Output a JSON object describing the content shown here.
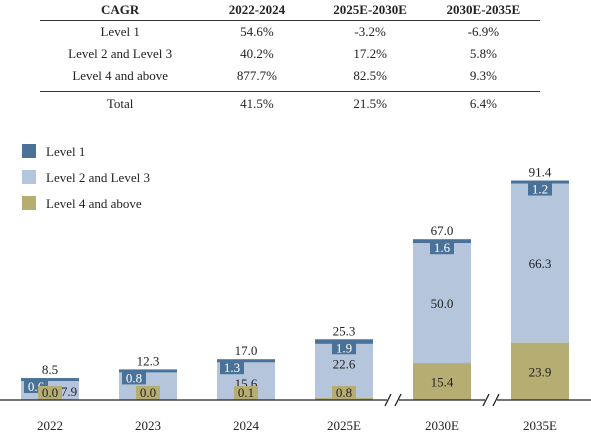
{
  "table": {
    "headers": [
      "CAGR",
      "2022-2024",
      "2025E-2030E",
      "2030E-2035E"
    ],
    "rows": [
      [
        "Level 1",
        "54.6%",
        "-3.2%",
        "-6.9%"
      ],
      [
        "Level 2 and Level 3",
        "40.2%",
        "17.2%",
        "5.8%"
      ],
      [
        "Level 4 and above",
        "877.7%",
        "82.5%",
        "9.3%"
      ]
    ],
    "total": [
      "Total",
      "41.5%",
      "21.5%",
      "6.4%"
    ]
  },
  "chart_data": {
    "type": "bar",
    "stacked": true,
    "categories": [
      "2022",
      "2023",
      "2024",
      "2025E",
      "2030E",
      "2035E"
    ],
    "series": [
      {
        "name": "Level 4 and above",
        "values": [
          0.0,
          0.0,
          0.1,
          0.8,
          15.4,
          23.9
        ],
        "color": "#b5ad72"
      },
      {
        "name": "Level 2 and Level 3",
        "values": [
          7.9,
          11.5,
          15.6,
          22.6,
          50.0,
          66.3
        ],
        "color": "#b4c5dc"
      },
      {
        "name": "Level 1",
        "values": [
          0.6,
          0.8,
          1.3,
          1.9,
          1.6,
          1.2
        ],
        "color": "#4a7298"
      }
    ],
    "totals": [
      8.5,
      12.3,
      17.0,
      25.3,
      67.0,
      91.4
    ],
    "axis_breaks_after": [
      "2025E",
      "2030E"
    ],
    "legend": [
      "Level 1",
      "Level 2 and Level 3",
      "Level 4 and above"
    ],
    "legend_position": "top-left",
    "ylim": [
      0,
      100
    ],
    "grid": false
  }
}
